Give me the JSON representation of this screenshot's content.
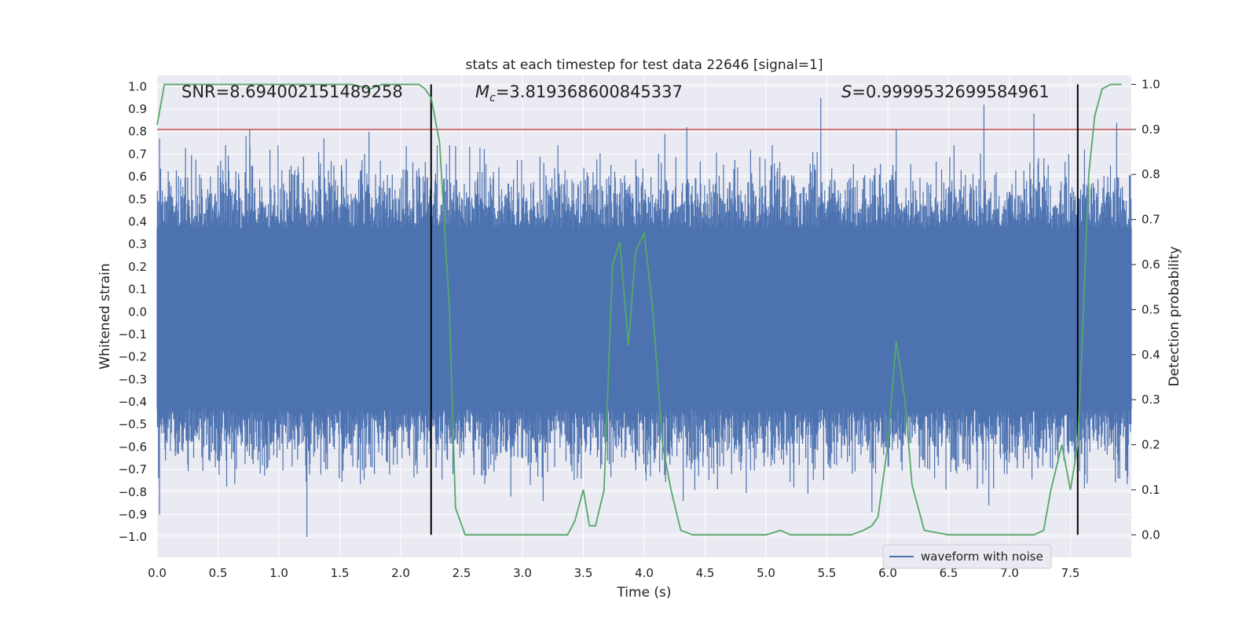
{
  "chart_data": {
    "type": "line",
    "title": "stats at each timestep for test data 22646 [signal=1]",
    "xlabel": "Time (s)",
    "ylabel_left": "Whitened strain",
    "ylabel_right": "Detection probability",
    "xlim": [
      0.0,
      8.0
    ],
    "ylim_left": [
      -1.09,
      1.05
    ],
    "ylim_right": [
      -0.05,
      1.02
    ],
    "xticks": [
      "0.0",
      "0.5",
      "1.0",
      "1.5",
      "2.0",
      "2.5",
      "3.0",
      "3.5",
      "4.0",
      "4.5",
      "5.0",
      "5.5",
      "6.0",
      "6.5",
      "7.0",
      "7.5"
    ],
    "xtick_values": [
      0,
      0.5,
      1,
      1.5,
      2,
      2.5,
      3,
      3.5,
      4,
      4.5,
      5,
      5.5,
      6,
      6.5,
      7,
      7.5
    ],
    "yticks_left": [
      "1.0",
      "0.9",
      "0.8",
      "0.7",
      "0.6",
      "0.5",
      "0.4",
      "0.3",
      "0.2",
      "0.1",
      "0.0",
      "−0.1",
      "−0.2",
      "−0.3",
      "−0.4",
      "−0.5",
      "−0.6",
      "−0.7",
      "−0.8",
      "−0.9",
      "−1.0"
    ],
    "ytick_values_left": [
      1.0,
      0.9,
      0.8,
      0.7,
      0.6,
      0.5,
      0.4,
      0.3,
      0.2,
      0.1,
      0.0,
      -0.1,
      -0.2,
      -0.3,
      -0.4,
      -0.5,
      -0.6,
      -0.7,
      -0.8,
      -0.9,
      -1.0
    ],
    "yticks_right": [
      "1.0",
      "0.9",
      "0.8",
      "0.7",
      "0.6",
      "0.5",
      "0.4",
      "0.3",
      "0.2",
      "0.1",
      "0.0"
    ],
    "ytick_values_right": [
      1.0,
      0.9,
      0.8,
      0.7,
      0.6,
      0.5,
      0.4,
      0.3,
      0.2,
      0.1,
      0.0
    ],
    "annotations": {
      "snr": "SNR=8.694002151489258",
      "mc_symbol": "M",
      "mc_subscript": "c",
      "mc_value": "=3.819368600845337",
      "s_symbol": "S",
      "s_value": "=0.9999532699584961"
    },
    "legend": {
      "label": "waveform with noise",
      "location": "lower right"
    },
    "threshold": {
      "value": 0.9,
      "axis": "right",
      "color": "#c44e52"
    },
    "vertical_markers": [
      2.25,
      7.56
    ],
    "waveform": {
      "name": "waveform with noise",
      "color": "#4c72b0",
      "dense_band": [
        -0.43,
        0.37
      ],
      "notable_peaks": [
        {
          "t": 0.02,
          "v": 0.77
        },
        {
          "t": 0.02,
          "v": -0.9
        },
        {
          "t": 0.73,
          "v": 0.78
        },
        {
          "t": 0.76,
          "v": 0.81
        },
        {
          "t": 1.23,
          "v": -1.0
        },
        {
          "t": 1.37,
          "v": 0.77
        },
        {
          "t": 1.74,
          "v": 0.8
        },
        {
          "t": 4.17,
          "v": 0.79
        },
        {
          "t": 4.35,
          "v": 0.82
        },
        {
          "t": 5.45,
          "v": 0.95
        },
        {
          "t": 6.07,
          "v": 0.81
        },
        {
          "t": 6.79,
          "v": 0.92
        },
        {
          "t": 7.2,
          "v": 0.88
        },
        {
          "t": 7.88,
          "v": 0.84
        },
        {
          "t": 5.87,
          "v": -0.89
        },
        {
          "t": 4.32,
          "v": -0.84
        },
        {
          "t": 3.17,
          "v": -0.84
        },
        {
          "t": 6.83,
          "v": -0.86
        }
      ]
    },
    "detection_probability": {
      "name": "detection probability",
      "color": "#55a868",
      "x": [
        0.0,
        0.06,
        0.2,
        0.4,
        0.6,
        0.8,
        1.0,
        1.2,
        1.4,
        1.6,
        1.75,
        1.85,
        2.0,
        2.15,
        2.2,
        2.25,
        2.32,
        2.4,
        2.45,
        2.53,
        2.6,
        2.8,
        3.0,
        3.2,
        3.37,
        3.43,
        3.5,
        3.55,
        3.6,
        3.67,
        3.74,
        3.8,
        3.87,
        3.93,
        4.0,
        4.07,
        4.15,
        4.22,
        4.3,
        4.4,
        4.6,
        4.8,
        5.0,
        5.12,
        5.2,
        5.3,
        5.5,
        5.7,
        5.8,
        5.87,
        5.92,
        6.0,
        6.07,
        6.14,
        6.2,
        6.3,
        6.5,
        6.8,
        7.0,
        7.2,
        7.28,
        7.34,
        7.43,
        7.5,
        7.56,
        7.6,
        7.65,
        7.7,
        7.76,
        7.83,
        7.92
      ],
      "y": [
        0.91,
        1.0,
        1.0,
        1.0,
        1.0,
        1.0,
        1.0,
        1.0,
        1.0,
        1.0,
        0.99,
        1.0,
        1.0,
        1.0,
        0.99,
        0.97,
        0.87,
        0.5,
        0.06,
        0.0,
        0.0,
        0.0,
        0.0,
        0.0,
        0.0,
        0.03,
        0.1,
        0.02,
        0.02,
        0.1,
        0.6,
        0.65,
        0.42,
        0.63,
        0.67,
        0.5,
        0.2,
        0.1,
        0.01,
        0.0,
        0.0,
        0.0,
        0.0,
        0.01,
        0.0,
        0.0,
        0.0,
        0.0,
        0.01,
        0.02,
        0.04,
        0.2,
        0.43,
        0.3,
        0.11,
        0.01,
        0.0,
        0.0,
        0.0,
        0.0,
        0.01,
        0.1,
        0.2,
        0.1,
        0.2,
        0.45,
        0.8,
        0.93,
        0.99,
        1.0,
        1.0
      ]
    }
  }
}
